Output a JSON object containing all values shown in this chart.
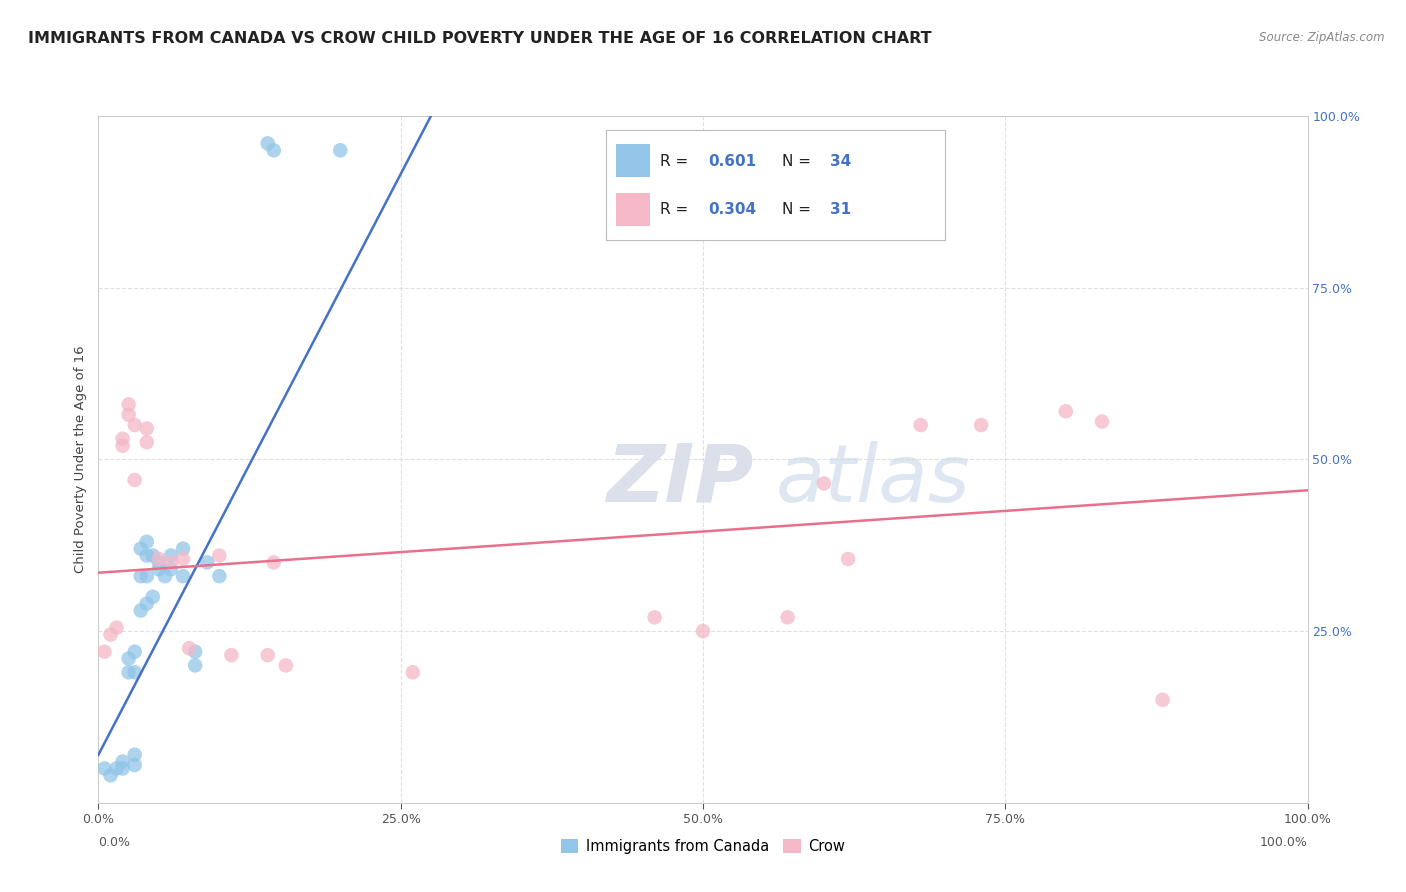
{
  "title": "IMMIGRANTS FROM CANADA VS CROW CHILD POVERTY UNDER THE AGE OF 16 CORRELATION CHART",
  "source": "Source: ZipAtlas.com",
  "ylabel": "Child Poverty Under the Age of 16",
  "xlim": [
    0.0,
    1.0
  ],
  "ylim": [
    0.0,
    1.0
  ],
  "xtick_positions": [
    0.0,
    0.25,
    0.5,
    0.75,
    1.0
  ],
  "xtick_labels": [
    "0.0%",
    "25.0%",
    "50.0%",
    "75.0%",
    "100.0%"
  ],
  "right_ytick_positions": [
    0.25,
    0.5,
    0.75,
    1.0
  ],
  "right_ytick_labels": [
    "25.0%",
    "50.0%",
    "75.0%",
    "100.0%"
  ],
  "blue_R": "0.601",
  "blue_N": "34",
  "pink_R": "0.304",
  "pink_N": "31",
  "blue_color": "#92c5e8",
  "pink_color": "#f4b8c8",
  "blue_line_color": "#4472c4",
  "pink_line_color": "#e8708a",
  "legend_label_blue": "Immigrants from Canada",
  "legend_label_pink": "Crow",
  "watermark_zip": "ZIP",
  "watermark_atlas": "atlas",
  "blue_scatter_x": [
    0.005,
    0.01,
    0.015,
    0.02,
    0.02,
    0.025,
    0.025,
    0.03,
    0.03,
    0.03,
    0.03,
    0.035,
    0.035,
    0.035,
    0.04,
    0.04,
    0.04,
    0.04,
    0.045,
    0.045,
    0.05,
    0.05,
    0.055,
    0.06,
    0.06,
    0.07,
    0.07,
    0.08,
    0.08,
    0.09,
    0.1,
    0.14,
    0.145,
    0.2
  ],
  "blue_scatter_y": [
    0.05,
    0.04,
    0.05,
    0.06,
    0.05,
    0.21,
    0.19,
    0.22,
    0.19,
    0.07,
    0.055,
    0.37,
    0.33,
    0.28,
    0.38,
    0.36,
    0.33,
    0.29,
    0.36,
    0.3,
    0.35,
    0.34,
    0.33,
    0.36,
    0.34,
    0.37,
    0.33,
    0.22,
    0.2,
    0.35,
    0.33,
    0.96,
    0.95,
    0.95
  ],
  "pink_scatter_x": [
    0.005,
    0.01,
    0.015,
    0.02,
    0.02,
    0.025,
    0.025,
    0.03,
    0.03,
    0.04,
    0.04,
    0.05,
    0.06,
    0.07,
    0.075,
    0.1,
    0.11,
    0.14,
    0.145,
    0.155,
    0.26,
    0.46,
    0.5,
    0.57,
    0.6,
    0.62,
    0.68,
    0.73,
    0.8,
    0.83,
    0.88
  ],
  "pink_scatter_y": [
    0.22,
    0.245,
    0.255,
    0.53,
    0.52,
    0.58,
    0.565,
    0.55,
    0.47,
    0.545,
    0.525,
    0.355,
    0.35,
    0.355,
    0.225,
    0.36,
    0.215,
    0.215,
    0.35,
    0.2,
    0.19,
    0.27,
    0.25,
    0.27,
    0.465,
    0.355,
    0.55,
    0.55,
    0.57,
    0.555,
    0.15
  ],
  "blue_line_x": [
    0.0,
    0.275
  ],
  "blue_line_y": [
    0.07,
    1.0
  ],
  "pink_line_x": [
    0.0,
    1.0
  ],
  "pink_line_y": [
    0.335,
    0.455
  ],
  "grid_color": "#e0e0e0",
  "background_color": "#ffffff",
  "title_fontsize": 11.5,
  "axis_label_fontsize": 9.5,
  "tick_fontsize": 9,
  "right_tick_color": "#4472c4"
}
